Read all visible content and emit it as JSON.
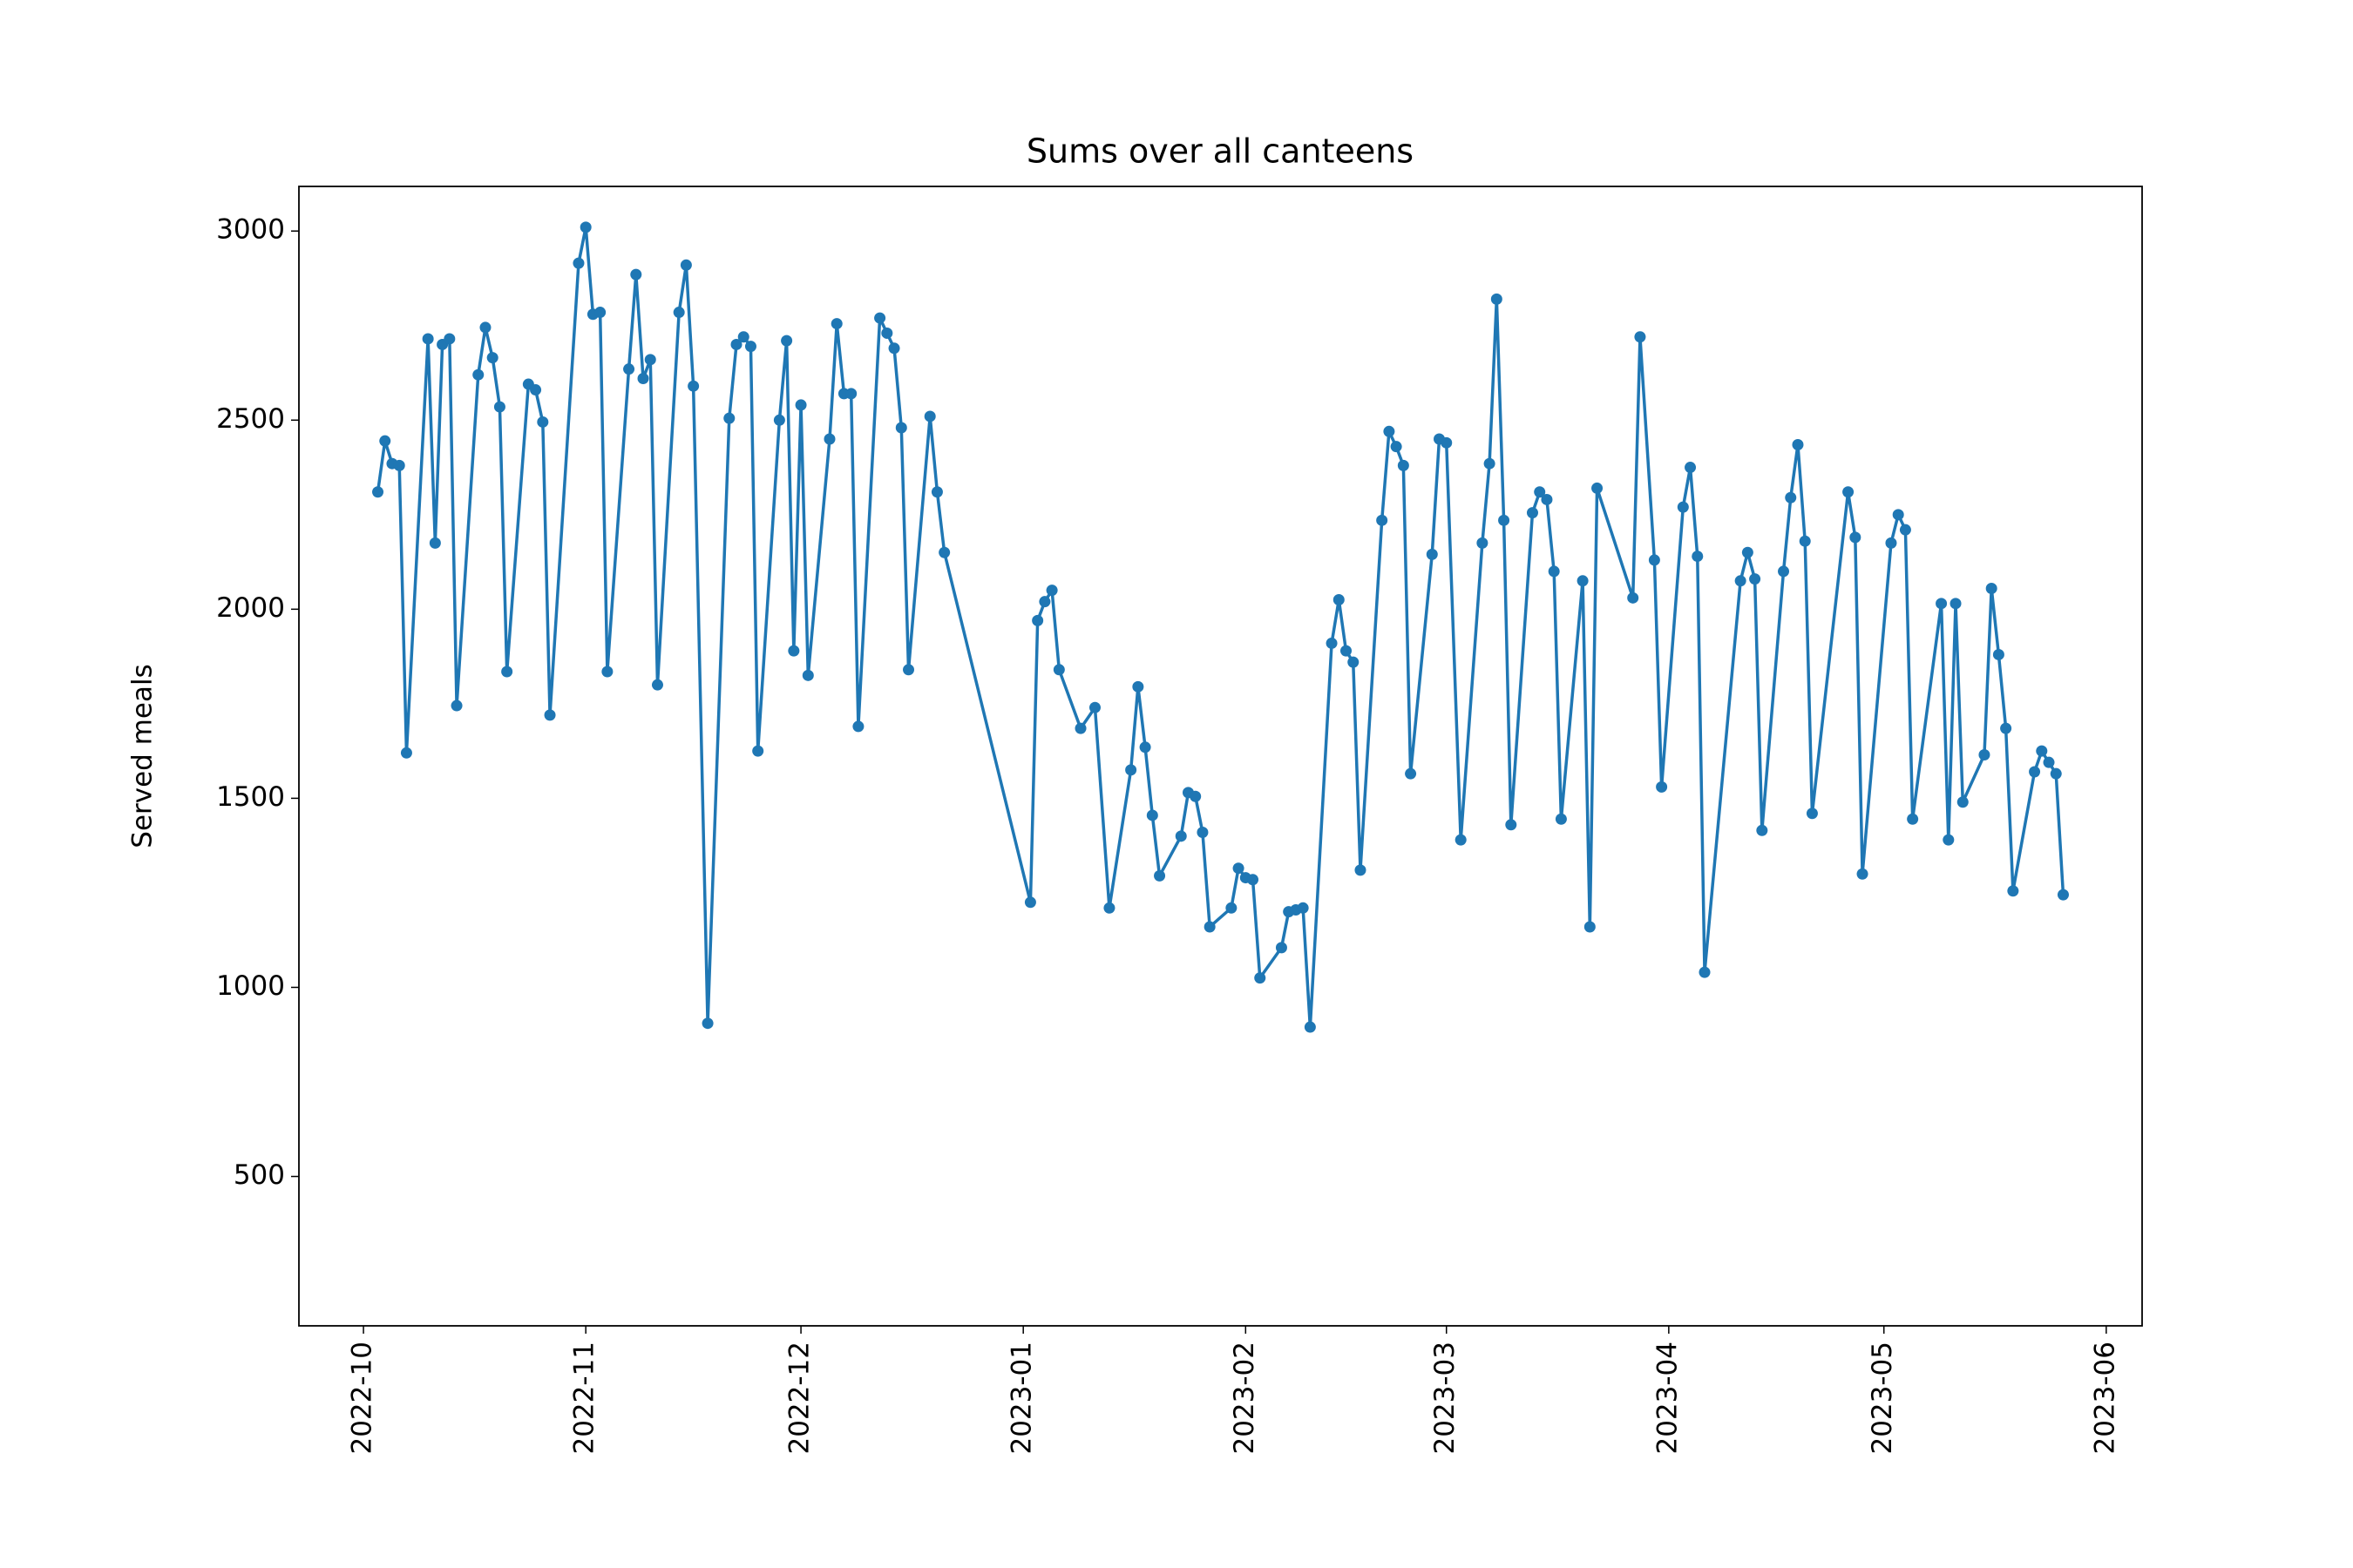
{
  "chart_data": {
    "type": "line",
    "title": "Sums over all canteens",
    "y_label": "Served meals",
    "x": [
      "2022-10-03",
      "2022-10-04",
      "2022-10-05",
      "2022-10-06",
      "2022-10-07",
      "2022-10-10",
      "2022-10-11",
      "2022-10-12",
      "2022-10-13",
      "2022-10-14",
      "2022-10-17",
      "2022-10-18",
      "2022-10-19",
      "2022-10-20",
      "2022-10-21",
      "2022-10-24",
      "2022-10-25",
      "2022-10-26",
      "2022-10-27",
      "2022-10-31",
      "2022-11-01",
      "2022-11-02",
      "2022-11-03",
      "2022-11-04",
      "2022-11-07",
      "2022-11-08",
      "2022-11-09",
      "2022-11-10",
      "2022-11-11",
      "2022-11-14",
      "2022-11-15",
      "2022-11-16",
      "2022-11-18",
      "2022-11-21",
      "2022-11-22",
      "2022-11-23",
      "2022-11-24",
      "2022-11-25",
      "2022-11-28",
      "2022-11-29",
      "2022-11-30",
      "2022-12-01",
      "2022-12-02",
      "2022-12-05",
      "2022-12-06",
      "2022-12-07",
      "2022-12-08",
      "2022-12-09",
      "2022-12-12",
      "2022-12-13",
      "2022-12-14",
      "2022-12-15",
      "2022-12-16",
      "2022-12-19",
      "2022-12-20",
      "2022-12-21",
      "2023-01-02",
      "2023-01-03",
      "2023-01-04",
      "2023-01-05",
      "2023-01-06",
      "2023-01-09",
      "2023-01-11",
      "2023-01-13",
      "2023-01-16",
      "2023-01-17",
      "2023-01-18",
      "2023-01-19",
      "2023-01-20",
      "2023-01-23",
      "2023-01-24",
      "2023-01-25",
      "2023-01-26",
      "2023-01-27",
      "2023-01-30",
      "2023-01-31",
      "2023-02-01",
      "2023-02-02",
      "2023-02-03",
      "2023-02-06",
      "2023-02-07",
      "2023-02-08",
      "2023-02-09",
      "2023-02-10",
      "2023-02-13",
      "2023-02-14",
      "2023-02-15",
      "2023-02-16",
      "2023-02-17",
      "2023-02-20",
      "2023-02-21",
      "2023-02-22",
      "2023-02-23",
      "2023-02-24",
      "2023-02-27",
      "2023-02-28",
      "2023-03-01",
      "2023-03-03",
      "2023-03-06",
      "2023-03-07",
      "2023-03-08",
      "2023-03-09",
      "2023-03-10",
      "2023-03-13",
      "2023-03-14",
      "2023-03-15",
      "2023-03-16",
      "2023-03-17",
      "2023-03-20",
      "2023-03-21",
      "2023-03-22",
      "2023-03-27",
      "2023-03-28",
      "2023-03-30",
      "2023-03-31",
      "2023-04-03",
      "2023-04-04",
      "2023-04-05",
      "2023-04-06",
      "2023-04-11",
      "2023-04-12",
      "2023-04-13",
      "2023-04-14",
      "2023-04-17",
      "2023-04-18",
      "2023-04-19",
      "2023-04-20",
      "2023-04-21",
      "2023-04-26",
      "2023-04-27",
      "2023-04-28",
      "2023-05-02",
      "2023-05-03",
      "2023-05-04",
      "2023-05-05",
      "2023-05-09",
      "2023-05-10",
      "2023-05-11",
      "2023-05-12",
      "2023-05-15",
      "2023-05-16",
      "2023-05-17",
      "2023-05-18",
      "2023-05-19",
      "2023-05-22",
      "2023-05-23",
      "2023-05-24",
      "2023-05-25",
      "2023-05-26"
    ],
    "series": [
      {
        "color": "#1f77b4",
        "values": [
          2310,
          2445,
          2385,
          2380,
          1620,
          2715,
          2175,
          2700,
          2715,
          1745,
          2620,
          2745,
          2665,
          2535,
          1835,
          2595,
          2580,
          2495,
          1720,
          2915,
          3010,
          2780,
          2785,
          1835,
          2635,
          2885,
          2610,
          2660,
          1800,
          2785,
          2910,
          2590,
          905,
          2505,
          2700,
          2720,
          2695,
          1625,
          2500,
          2710,
          1890,
          2540,
          1825,
          2450,
          2755,
          2570,
          2570,
          1690,
          2770,
          2730,
          2690,
          2480,
          1840,
          2510,
          2310,
          2150,
          1225,
          1970,
          2020,
          2050,
          1840,
          1685,
          1740,
          1210,
          1575,
          1795,
          1635,
          1455,
          1295,
          1400,
          1515,
          1505,
          1410,
          1160,
          1210,
          1315,
          1290,
          1285,
          1025,
          1105,
          1200,
          1205,
          1210,
          895,
          1910,
          2025,
          1890,
          1860,
          1310,
          2235,
          2470,
          2430,
          2380,
          1565,
          2145,
          2450,
          2440,
          1390,
          2175,
          2385,
          2820,
          2235,
          1430,
          2255,
          2310,
          2290,
          2100,
          1445,
          2075,
          1160,
          2320,
          2030,
          2720,
          2130,
          1530,
          2270,
          2375,
          2140,
          1040,
          2075,
          2150,
          2080,
          1415,
          2100,
          2295,
          2435,
          2180,
          1460,
          2310,
          2190,
          1300,
          2175,
          2250,
          2210,
          1445,
          2015,
          1390,
          2015,
          1490,
          1615,
          2055,
          1880,
          1685,
          1255,
          1570,
          1625,
          1595,
          1565,
          1245
        ]
      }
    ],
    "xlim": [
      "2022-09-22",
      "2023-06-06"
    ],
    "xticks": [
      {
        "value": "2022-10-01",
        "label": "2022-10"
      },
      {
        "value": "2022-11-01",
        "label": "2022-11"
      },
      {
        "value": "2022-12-01",
        "label": "2022-12"
      },
      {
        "value": "2023-01-01",
        "label": "2023-01"
      },
      {
        "value": "2023-02-01",
        "label": "2023-02"
      },
      {
        "value": "2023-03-01",
        "label": "2023-03"
      },
      {
        "value": "2023-04-01",
        "label": "2023-04"
      },
      {
        "value": "2023-05-01",
        "label": "2023-05"
      },
      {
        "value": "2023-06-01",
        "label": "2023-06"
      }
    ],
    "ylim": [
      105,
      3118
    ],
    "yticks": [
      500,
      1000,
      1500,
      2000,
      2500,
      3000
    ],
    "grid": false,
    "markers": true
  }
}
